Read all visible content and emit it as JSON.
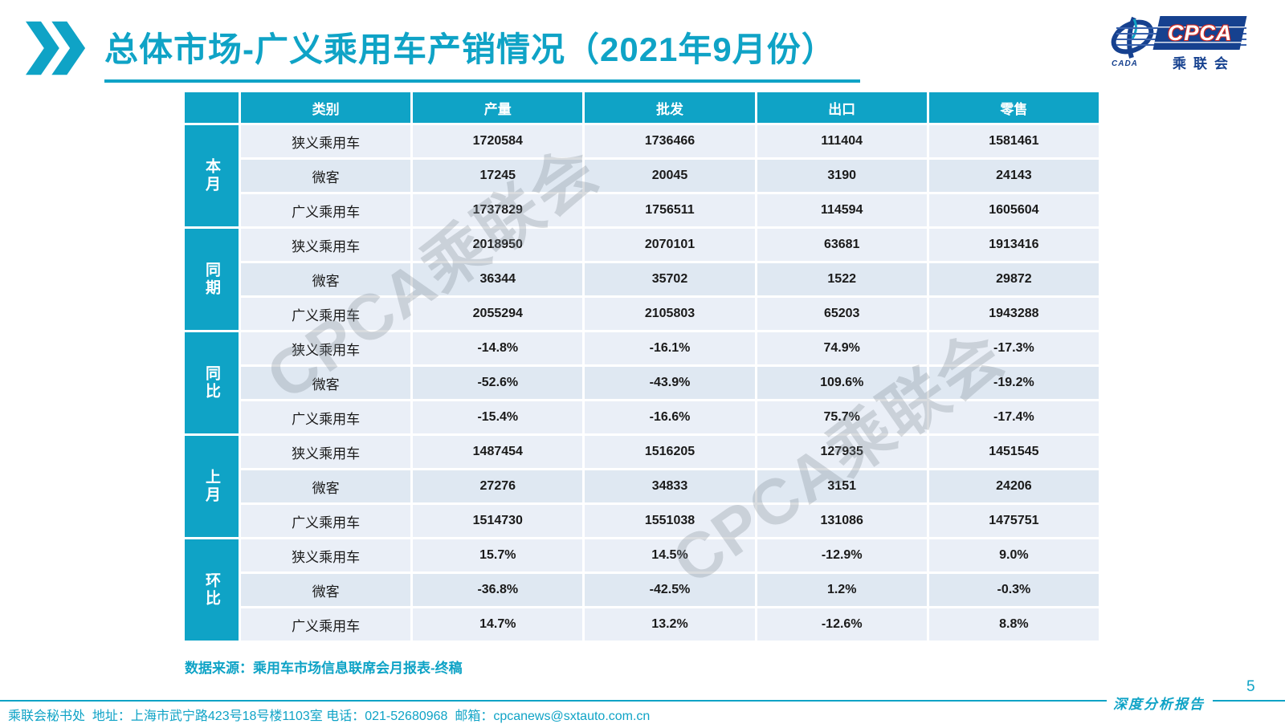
{
  "title": "总体市场-广义乘用车产销情况（2021年9月份）",
  "logo": {
    "cpca": "CPCA",
    "cada": "CADA",
    "subtitle": "乘联会"
  },
  "watermark": {
    "text": "CPCA乘联会"
  },
  "table": {
    "headers": [
      "类别",
      "产量",
      "批发",
      "出口",
      "零售"
    ],
    "groups": [
      {
        "label": "本月",
        "rows": [
          {
            "category": "狭义乘用车",
            "values": [
              "1720584",
              "1736466",
              "111404",
              "1581461"
            ]
          },
          {
            "category": "微客",
            "values": [
              "17245",
              "20045",
              "3190",
              "24143"
            ]
          },
          {
            "category": "广义乘用车",
            "values": [
              "1737829",
              "1756511",
              "114594",
              "1605604"
            ]
          }
        ]
      },
      {
        "label": "同期",
        "rows": [
          {
            "category": "狭义乘用车",
            "values": [
              "2018950",
              "2070101",
              "63681",
              "1913416"
            ]
          },
          {
            "category": "微客",
            "values": [
              "36344",
              "35702",
              "1522",
              "29872"
            ]
          },
          {
            "category": "广义乘用车",
            "values": [
              "2055294",
              "2105803",
              "65203",
              "1943288"
            ]
          }
        ]
      },
      {
        "label": "同比",
        "rows": [
          {
            "category": "狭义乘用车",
            "values": [
              "-14.8%",
              "-16.1%",
              "74.9%",
              "-17.3%"
            ]
          },
          {
            "category": "微客",
            "values": [
              "-52.6%",
              "-43.9%",
              "109.6%",
              "-19.2%"
            ]
          },
          {
            "category": "广义乘用车",
            "values": [
              "-15.4%",
              "-16.6%",
              "75.7%",
              "-17.4%"
            ]
          }
        ]
      },
      {
        "label": "上月",
        "rows": [
          {
            "category": "狭义乘用车",
            "values": [
              "1487454",
              "1516205",
              "127935",
              "1451545"
            ]
          },
          {
            "category": "微客",
            "values": [
              "27276",
              "34833",
              "3151",
              "24206"
            ]
          },
          {
            "category": "广义乘用车",
            "values": [
              "1514730",
              "1551038",
              "131086",
              "1475751"
            ]
          }
        ]
      },
      {
        "label": "环比",
        "rows": [
          {
            "category": "狭义乘用车",
            "values": [
              "15.7%",
              "14.5%",
              "-12.9%",
              "9.0%"
            ]
          },
          {
            "category": "微客",
            "values": [
              "-36.8%",
              "-42.5%",
              "1.2%",
              "-0.3%"
            ]
          },
          {
            "category": "广义乘用车",
            "values": [
              "14.7%",
              "13.2%",
              "-12.6%",
              "8.8%"
            ]
          }
        ]
      }
    ]
  },
  "source_note": "数据来源：乘用车市场信息联席会月报表-终稿",
  "footer": {
    "left": "乘联会秘书处  地址：上海市武宁路423号18号楼1103室 电话：021-52680968  邮箱：cpcanews@sxtauto.com.cn",
    "report_label": "深度分析报告",
    "page_number": "5"
  },
  "colors": {
    "accent": "#0fa3c6",
    "logo_navy": "#16418f",
    "logo_red": "#d3281e",
    "row_light": "#eaeff7",
    "row_dark": "#dfe8f2"
  }
}
